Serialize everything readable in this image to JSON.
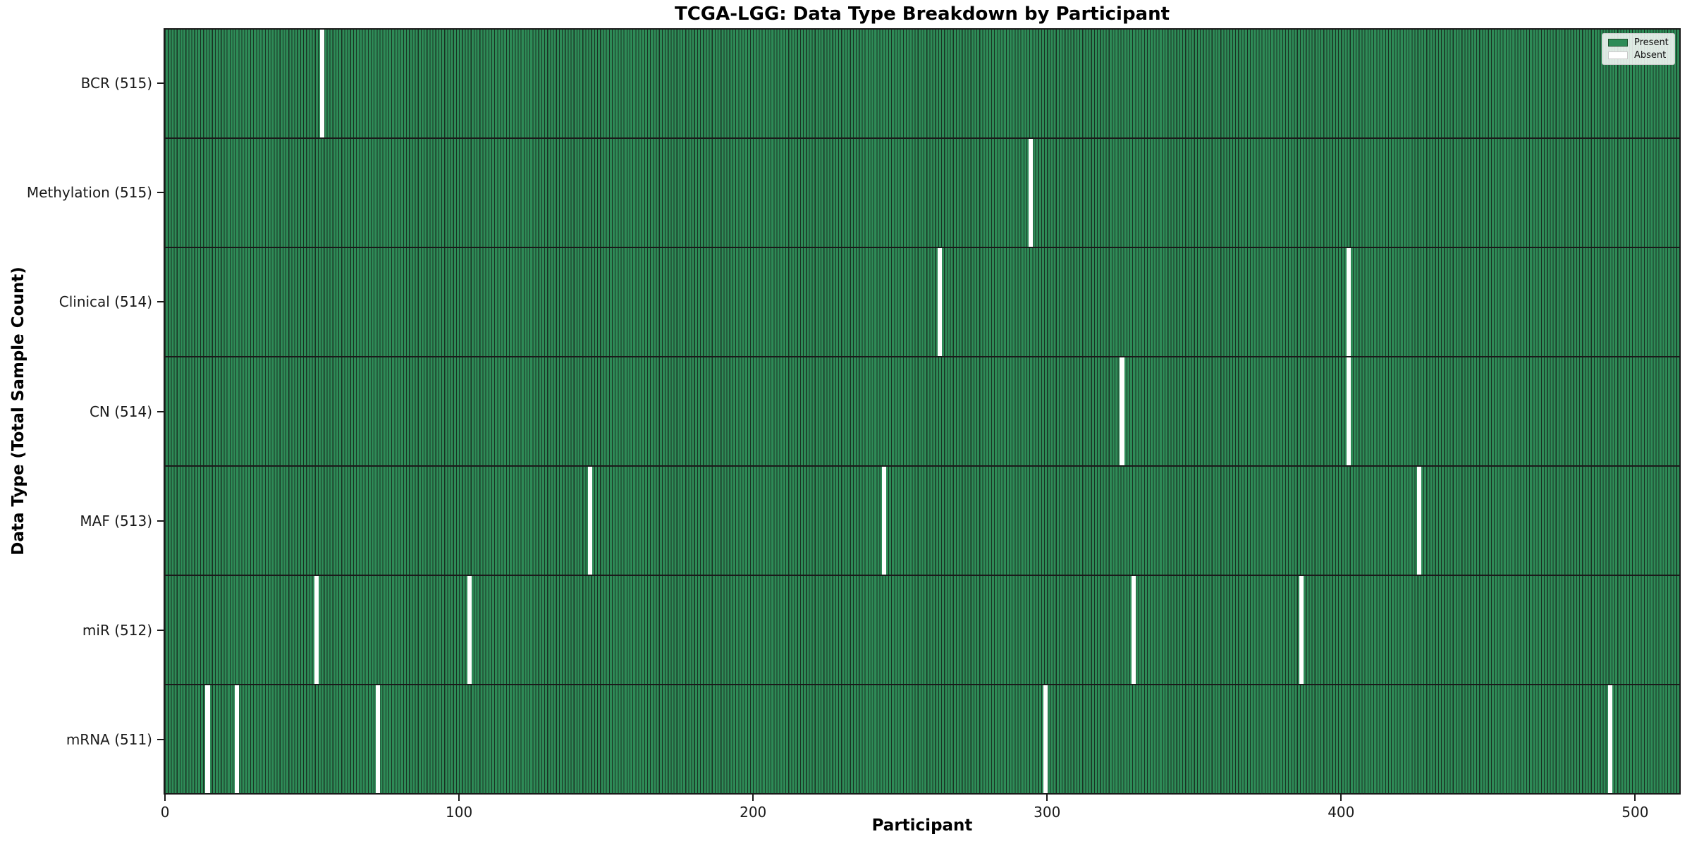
{
  "chart_data": {
    "type": "heatmap",
    "title": "TCGA-LGG: Data Type Breakdown by Participant",
    "xlabel": "Participant",
    "ylabel": "Data Type (Total Sample Count)",
    "x_ticks": [
      0,
      100,
      200,
      300,
      400,
      500
    ],
    "x_range": [
      0,
      516
    ],
    "n_participants": 516,
    "grid": false,
    "legend_position": "upper right",
    "legend_items": [
      {
        "label": "Present",
        "color": "#2e8b57"
      },
      {
        "label": "Absent",
        "color": "#ffffff"
      }
    ],
    "colors": {
      "present": "#2e8b57",
      "absent": "#ffffff",
      "cell_edge": "#193223",
      "plot_border": "#1a1a1a",
      "present_swatch_edge": "#20512f",
      "absent_swatch_edge": "#c9c9c9"
    },
    "rows": [
      {
        "label": "BCR (515)",
        "data_type": "BCR",
        "present_count": 515,
        "absent_participants": [
          53
        ]
      },
      {
        "label": "Methylation (515)",
        "data_type": "Methylation",
        "present_count": 515,
        "absent_participants": [
          294
        ]
      },
      {
        "label": "Clinical (514)",
        "data_type": "Clinical",
        "present_count": 514,
        "absent_participants": [
          263,
          402
        ]
      },
      {
        "label": "CN (514)",
        "data_type": "CN",
        "present_count": 514,
        "absent_participants": [
          325,
          402
        ]
      },
      {
        "label": "MAF (513)",
        "data_type": "MAF",
        "present_count": 513,
        "absent_participants": [
          144,
          244,
          426
        ]
      },
      {
        "label": "miR (512)",
        "data_type": "miR",
        "present_count": 512,
        "absent_participants": [
          51,
          103,
          329,
          386
        ]
      },
      {
        "label": "mRNA (511)",
        "data_type": "mRNA",
        "present_count": 511,
        "absent_participants": [
          14,
          24,
          72,
          299,
          491
        ]
      }
    ]
  }
}
